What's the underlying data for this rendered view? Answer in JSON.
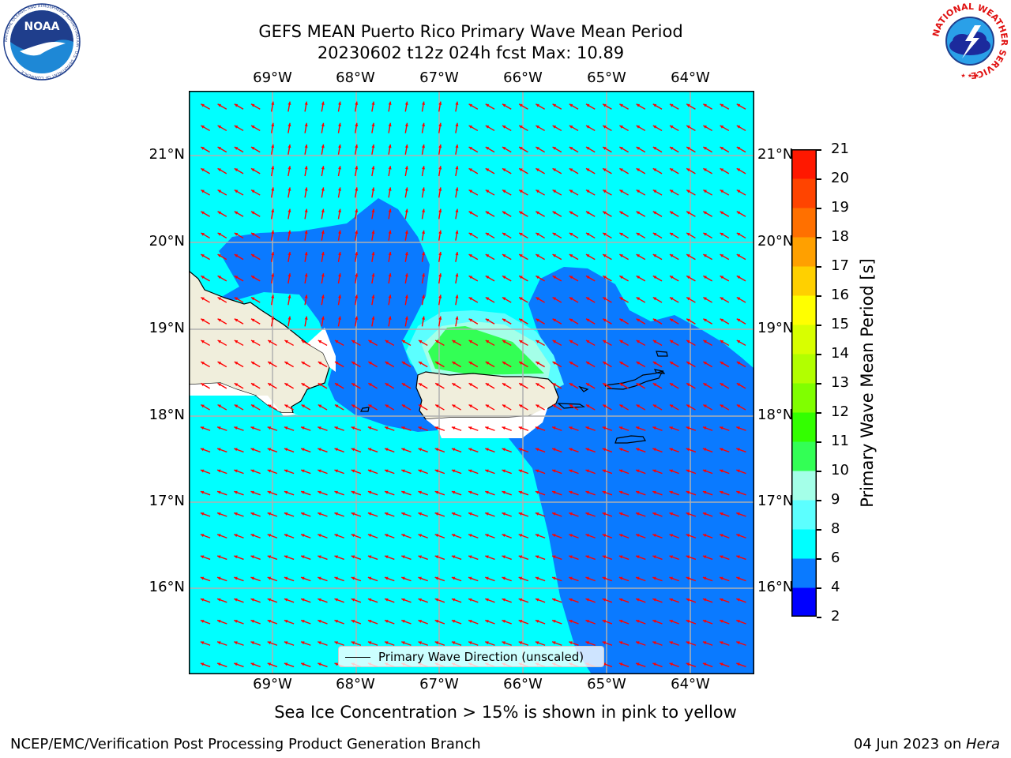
{
  "title": {
    "line1": "GEFS MEAN Puerto Rico Primary Wave Mean Period",
    "line2": "20230602 t12z 024h fcst   Max: 10.89"
  },
  "logos": {
    "left": {
      "name": "noaa-logo",
      "text": "NOAA",
      "ring_text": "NATIONAL OCEANIC AND ATMOSPHERIC ADMINISTRATION · U.S. DEPARTMENT OF COMMERCE"
    },
    "right": {
      "name": "nws-logo",
      "ring_text": "NATIONAL WEATHER SERVICE"
    }
  },
  "axes": {
    "lon_ticks": [
      "69°W",
      "68°W",
      "67°W",
      "66°W",
      "65°W",
      "64°W"
    ],
    "lat_ticks": [
      "21°N",
      "20°N",
      "19°N",
      "18°N",
      "17°N",
      "16°N"
    ]
  },
  "colorbar": {
    "label": "Primary Wave Mean Period [s]",
    "ticks": [
      "21",
      "20",
      "19",
      "18",
      "17",
      "16",
      "15",
      "14",
      "13",
      "12",
      "11",
      "10",
      "9",
      "8",
      "6",
      "4",
      "2"
    ],
    "colors": [
      "#0000ff",
      "#0a7aff",
      "#00ffff",
      "#5cffff",
      "#a4ffe8",
      "#33ff55",
      "#33ff00",
      "#80ff00",
      "#b2ff00",
      "#d8ff00",
      "#ffff00",
      "#ffd000",
      "#ffa000",
      "#ff7000",
      "#ff4400",
      "#ff1800"
    ]
  },
  "legend": {
    "label": "Primary Wave Direction (unscaled)"
  },
  "caption": "Sea Ice Concentration > 15% is shown in pink to yellow",
  "footer": {
    "left": "NCEP/EMC/Verification Post Processing Product Generation Branch",
    "right_date": "04 Jun 2023 on ",
    "right_host": "Hera"
  },
  "colors": {
    "sea_light": "#00ffff",
    "sea_dark": "#0a7aff",
    "land": "#f0eedc",
    "arrow": "#ff0000",
    "grid": "#b0b0b0"
  }
}
